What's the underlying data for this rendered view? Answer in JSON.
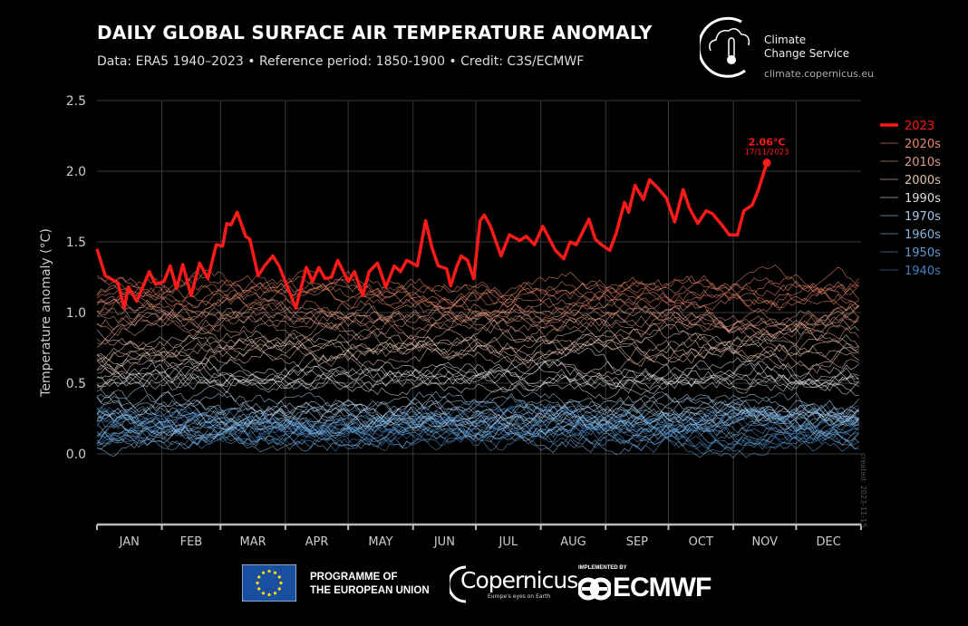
{
  "header": {
    "title": "DAILY GLOBAL SURFACE AIR TEMPERATURE ANOMALY",
    "subtitle": "Data: ERA5 1940–2023 • Reference period: 1850-1900 • Credit: C3S/ECMWF"
  },
  "branding": {
    "c3s_line1": "Climate",
    "c3s_line2": "Change Service",
    "c3s_url": "climate.copernicus.eu",
    "eu_line1": "PROGRAMME OF",
    "eu_line2": "THE EUROPEAN UNION",
    "copernicus": "Copernicus",
    "copernicus_tagline": "Europe's eyes on Earth",
    "implemented_by": "IMPLEMENTED BY",
    "ecmwf": "ECMWF"
  },
  "created_note": "created: 2023-11-15",
  "chart_data": {
    "type": "line",
    "title": "DAILY GLOBAL SURFACE AIR TEMPERATURE ANOMALY",
    "ylabel": "Temperature anomaly (°C)",
    "xlabel": "",
    "ylim": [
      -0.5,
      2.5
    ],
    "yticks": [
      "2.5",
      "2.0",
      "1.5",
      "1.0",
      "0.5",
      "0.0"
    ],
    "ytick_values": [
      2.5,
      2.0,
      1.5,
      1.0,
      0.5,
      0.0
    ],
    "xlim": [
      "2023-01-01",
      "2023-12-31"
    ],
    "xticks": [
      "JAN",
      "FEB",
      "MAR",
      "APR",
      "MAY",
      "JUN",
      "JUL",
      "AUG",
      "SEP",
      "OCT",
      "NOV",
      "DEC"
    ],
    "grid": true,
    "legend_placement": "right",
    "legend": [
      {
        "name": "2023",
        "color": "#ff1a1a"
      },
      {
        "name": "2020s",
        "color": "#e8866a"
      },
      {
        "name": "2010s",
        "color": "#dc9a85"
      },
      {
        "name": "2000s",
        "color": "#e6c0ae"
      },
      {
        "name": "1990s",
        "color": "#dedede"
      },
      {
        "name": "1970s",
        "color": "#a9c9e4"
      },
      {
        "name": "1960s",
        "color": "#82b3dc"
      },
      {
        "name": "1950s",
        "color": "#5f9bd0"
      },
      {
        "name": "1940s",
        "color": "#3f7fbf"
      }
    ],
    "highlight": {
      "label": "2.06°C",
      "date_label": "17/11/2023",
      "date": "2023-11-17",
      "value": 2.06,
      "color": "#ff1a1a"
    },
    "series_2023": {
      "name": "2023",
      "color": "#ff1a1a",
      "x": [
        "2023-01-01",
        "2023-01-05",
        "2023-01-11",
        "2023-01-14",
        "2023-01-16",
        "2023-01-20",
        "2023-01-26",
        "2023-01-29",
        "2023-02-02",
        "2023-02-05",
        "2023-02-08",
        "2023-02-11",
        "2023-02-15",
        "2023-02-19",
        "2023-02-23",
        "2023-02-27",
        "2023-03-02",
        "2023-03-04",
        "2023-03-06",
        "2023-03-09",
        "2023-03-13",
        "2023-03-15",
        "2023-03-19",
        "2023-03-22",
        "2023-03-26",
        "2023-03-29",
        "2023-04-02",
        "2023-04-06",
        "2023-04-11",
        "2023-04-14",
        "2023-04-17",
        "2023-04-20",
        "2023-04-23",
        "2023-04-26",
        "2023-05-01",
        "2023-05-04",
        "2023-05-08",
        "2023-05-11",
        "2023-05-15",
        "2023-05-19",
        "2023-05-23",
        "2023-05-26",
        "2023-05-29",
        "2023-06-03",
        "2023-06-07",
        "2023-06-10",
        "2023-06-13",
        "2023-06-17",
        "2023-06-19",
        "2023-06-22",
        "2023-06-24",
        "2023-06-27",
        "2023-06-30",
        "2023-07-03",
        "2023-07-05",
        "2023-07-08",
        "2023-07-13",
        "2023-07-17",
        "2023-07-22",
        "2023-07-25",
        "2023-07-29",
        "2023-08-02",
        "2023-08-08",
        "2023-08-12",
        "2023-08-15",
        "2023-08-18",
        "2023-08-24",
        "2023-08-27",
        "2023-08-30",
        "2023-09-03",
        "2023-09-06",
        "2023-09-10",
        "2023-09-12",
        "2023-09-15",
        "2023-09-19",
        "2023-09-22",
        "2023-09-26",
        "2023-09-30",
        "2023-10-04",
        "2023-10-08",
        "2023-10-11",
        "2023-10-15",
        "2023-10-19",
        "2023-10-22",
        "2023-10-27",
        "2023-10-30",
        "2023-11-03",
        "2023-11-06",
        "2023-11-10",
        "2023-11-13",
        "2023-11-17"
      ],
      "y": [
        1.45,
        1.26,
        1.21,
        1.03,
        1.18,
        1.08,
        1.29,
        1.2,
        1.22,
        1.33,
        1.17,
        1.34,
        1.12,
        1.35,
        1.24,
        1.48,
        1.47,
        1.63,
        1.62,
        1.71,
        1.54,
        1.52,
        1.26,
        1.33,
        1.4,
        1.33,
        1.18,
        1.03,
        1.32,
        1.22,
        1.32,
        1.24,
        1.25,
        1.37,
        1.22,
        1.29,
        1.12,
        1.29,
        1.35,
        1.18,
        1.33,
        1.29,
        1.37,
        1.33,
        1.65,
        1.46,
        1.33,
        1.31,
        1.19,
        1.33,
        1.4,
        1.37,
        1.24,
        1.65,
        1.69,
        1.61,
        1.4,
        1.55,
        1.51,
        1.54,
        1.48,
        1.61,
        1.44,
        1.38,
        1.5,
        1.48,
        1.66,
        1.52,
        1.48,
        1.44,
        1.56,
        1.78,
        1.71,
        1.9,
        1.8,
        1.94,
        1.88,
        1.81,
        1.64,
        1.87,
        1.74,
        1.63,
        1.72,
        1.7,
        1.61,
        1.55,
        1.55,
        1.72,
        1.76,
        1.87,
        2.06
      ]
    },
    "decade_bands": [
      {
        "name": "2020s",
        "approx_mean": 1.15,
        "color": "#e8866a"
      },
      {
        "name": "2010s",
        "approx_mean": 0.95,
        "color": "#dc9a85"
      },
      {
        "name": "2000s",
        "approx_mean": 0.75,
        "color": "#e6c0ae"
      },
      {
        "name": "1990s",
        "approx_mean": 0.55,
        "color": "#dedede"
      },
      {
        "name": "1970s",
        "approx_mean": 0.3,
        "color": "#a9c9e4"
      },
      {
        "name": "1960s",
        "approx_mean": 0.2,
        "color": "#82b3dc"
      },
      {
        "name": "1950s",
        "approx_mean": 0.15,
        "color": "#5f9bd0"
      },
      {
        "name": "1940s",
        "approx_mean": 0.2,
        "color": "#3f7fbf"
      }
    ]
  }
}
